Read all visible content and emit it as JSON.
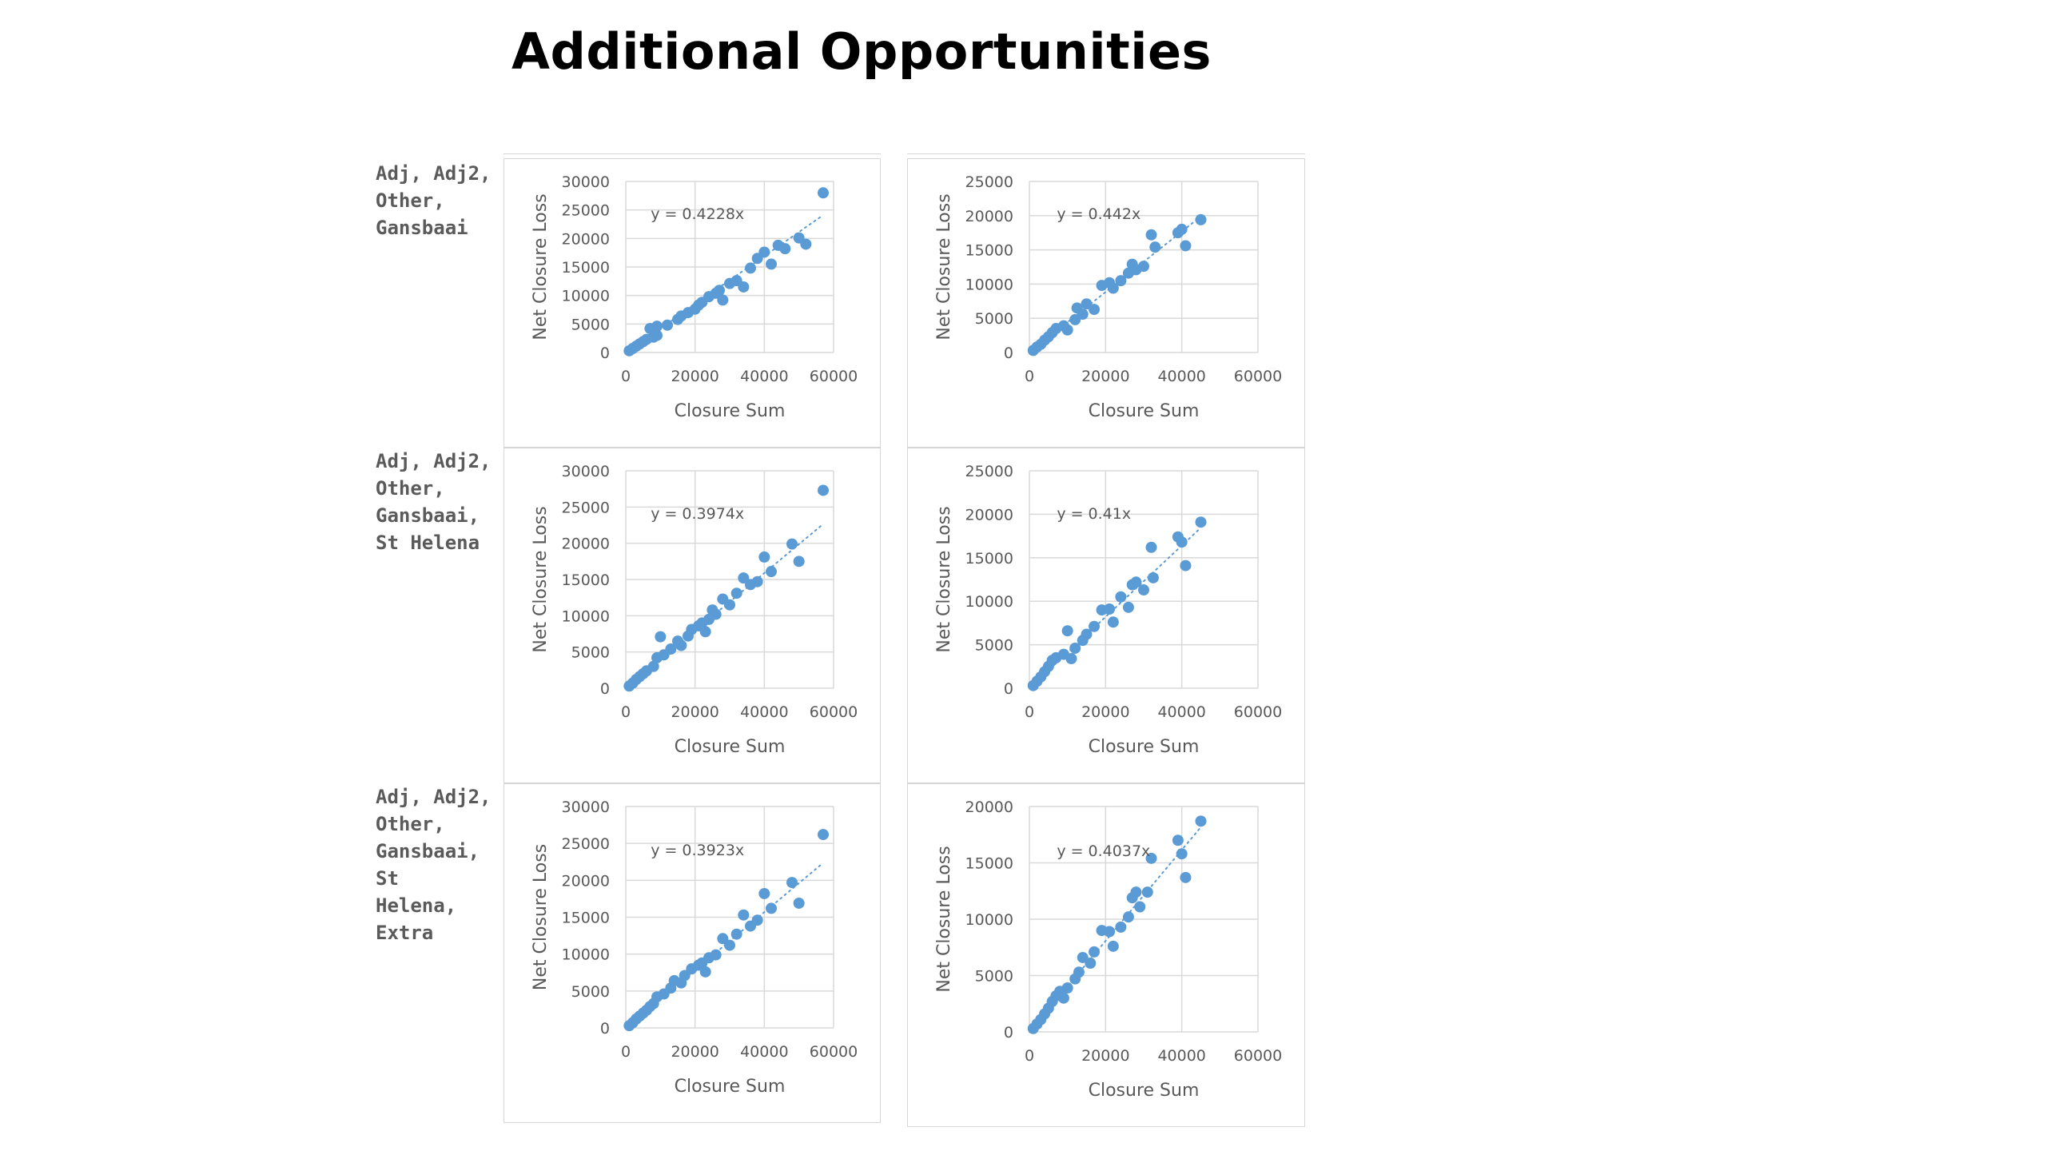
{
  "title": "Additional Opportunities",
  "row_labels": [
    [
      "Adj, Adj2,",
      "Other,",
      "Gansbaai"
    ],
    [
      "Adj, Adj2,",
      "Other,",
      "Gansbaai,",
      "St Helena"
    ],
    [
      "Adj, Adj2,",
      "Other,",
      "Gansbaai,",
      "St",
      "Helena,",
      "Extra"
    ]
  ],
  "colors": {
    "marker": "#5b9bd5",
    "trendline": "#5b9bd5",
    "grid": "#d9d9d9",
    "text": "#595959"
  },
  "chart_data": [
    {
      "type": "scatter",
      "xlabel": "Closure Sum",
      "ylabel": "Net Closure Loss",
      "xlim": [
        0,
        60000
      ],
      "ylim": [
        0,
        30000
      ],
      "xticks": [
        0,
        20000,
        40000,
        60000
      ],
      "yticks": [
        0,
        5000,
        10000,
        15000,
        20000,
        25000,
        30000
      ],
      "trendline": {
        "slope": 0.4228,
        "label": "y = 0.4228x"
      },
      "points": [
        [
          1000,
          300
        ],
        [
          2000,
          700
        ],
        [
          3000,
          1100
        ],
        [
          4000,
          1500
        ],
        [
          5000,
          1900
        ],
        [
          6000,
          2300
        ],
        [
          8000,
          2700
        ],
        [
          9000,
          3000
        ],
        [
          7000,
          4200
        ],
        [
          9000,
          4600
        ],
        [
          12000,
          4800
        ],
        [
          15000,
          5800
        ],
        [
          16000,
          6400
        ],
        [
          18000,
          7000
        ],
        [
          20000,
          7600
        ],
        [
          21000,
          8300
        ],
        [
          22000,
          8800
        ],
        [
          24000,
          9800
        ],
        [
          26000,
          10400
        ],
        [
          27000,
          10900
        ],
        [
          28000,
          9200
        ],
        [
          30000,
          12100
        ],
        [
          32000,
          12600
        ],
        [
          34000,
          11500
        ],
        [
          36000,
          14800
        ],
        [
          38000,
          16500
        ],
        [
          40000,
          17600
        ],
        [
          42000,
          15500
        ],
        [
          44000,
          18800
        ],
        [
          46000,
          18200
        ],
        [
          50000,
          20100
        ],
        [
          52000,
          19000
        ],
        [
          57000,
          28000
        ]
      ]
    },
    {
      "type": "scatter",
      "xlabel": "Closure Sum",
      "ylabel": "Net Closure Loss",
      "xlim": [
        0,
        60000
      ],
      "ylim": [
        0,
        25000
      ],
      "xticks": [
        0,
        20000,
        40000,
        60000
      ],
      "yticks": [
        0,
        5000,
        10000,
        15000,
        20000,
        25000
      ],
      "trendline": {
        "slope": 0.442,
        "label": "y = 0.442x"
      },
      "points": [
        [
          1000,
          300
        ],
        [
          2000,
          800
        ],
        [
          3000,
          1200
        ],
        [
          4000,
          1800
        ],
        [
          5000,
          2300
        ],
        [
          6000,
          2900
        ],
        [
          7000,
          3500
        ],
        [
          9000,
          3900
        ],
        [
          10000,
          3300
        ],
        [
          12000,
          4800
        ],
        [
          12500,
          6500
        ],
        [
          14000,
          5600
        ],
        [
          15000,
          7100
        ],
        [
          17000,
          6300
        ],
        [
          19000,
          9800
        ],
        [
          21000,
          10200
        ],
        [
          22000,
          9400
        ],
        [
          24000,
          10500
        ],
        [
          26000,
          11600
        ],
        [
          27000,
          12900
        ],
        [
          28000,
          12100
        ],
        [
          30000,
          12600
        ],
        [
          32000,
          17200
        ],
        [
          33000,
          15400
        ],
        [
          39000,
          17500
        ],
        [
          40000,
          18000
        ],
        [
          41000,
          15600
        ],
        [
          45000,
          19400
        ]
      ]
    },
    {
      "type": "scatter",
      "xlabel": "Closure Sum",
      "ylabel": "Net Closure Loss",
      "xlim": [
        0,
        60000
      ],
      "ylim": [
        0,
        30000
      ],
      "xticks": [
        0,
        20000,
        40000,
        60000
      ],
      "yticks": [
        0,
        5000,
        10000,
        15000,
        20000,
        25000,
        30000
      ],
      "trendline": {
        "slope": 0.3974,
        "label": "y = 0.3974x"
      },
      "points": [
        [
          1000,
          300
        ],
        [
          2000,
          700
        ],
        [
          3000,
          1200
        ],
        [
          4000,
          1600
        ],
        [
          5000,
          2000
        ],
        [
          6000,
          2400
        ],
        [
          8000,
          3000
        ],
        [
          9000,
          4200
        ],
        [
          10000,
          7100
        ],
        [
          11000,
          4600
        ],
        [
          13000,
          5400
        ],
        [
          15000,
          6500
        ],
        [
          16000,
          5900
        ],
        [
          18000,
          7200
        ],
        [
          19000,
          8100
        ],
        [
          21000,
          8600
        ],
        [
          22000,
          9000
        ],
        [
          23000,
          7800
        ],
        [
          24000,
          9500
        ],
        [
          25000,
          10800
        ],
        [
          26000,
          10200
        ],
        [
          28000,
          12300
        ],
        [
          30000,
          11500
        ],
        [
          32000,
          13100
        ],
        [
          34000,
          15200
        ],
        [
          36000,
          14300
        ],
        [
          38000,
          14700
        ],
        [
          40000,
          18100
        ],
        [
          42000,
          16100
        ],
        [
          48000,
          19900
        ],
        [
          50000,
          17500
        ],
        [
          57000,
          27300
        ]
      ]
    },
    {
      "type": "scatter",
      "xlabel": "Closure Sum",
      "ylabel": "Net Closure Loss",
      "xlim": [
        0,
        60000
      ],
      "ylim": [
        0,
        25000
      ],
      "xticks": [
        0,
        20000,
        40000,
        60000
      ],
      "yticks": [
        0,
        5000,
        10000,
        15000,
        20000,
        25000
      ],
      "trendline": {
        "slope": 0.41,
        "label": "y = 0.41x"
      },
      "points": [
        [
          1000,
          300
        ],
        [
          2000,
          800
        ],
        [
          3000,
          1300
        ],
        [
          4000,
          1900
        ],
        [
          5000,
          2500
        ],
        [
          6000,
          3200
        ],
        [
          7000,
          3500
        ],
        [
          9000,
          3900
        ],
        [
          10000,
          6600
        ],
        [
          11000,
          3400
        ],
        [
          12000,
          4600
        ],
        [
          14000,
          5500
        ],
        [
          15000,
          6200
        ],
        [
          17000,
          7100
        ],
        [
          19000,
          9000
        ],
        [
          21000,
          9100
        ],
        [
          22000,
          7600
        ],
        [
          24000,
          10500
        ],
        [
          26000,
          9300
        ],
        [
          27000,
          11900
        ],
        [
          28000,
          12200
        ],
        [
          30000,
          11300
        ],
        [
          32000,
          16200
        ],
        [
          32500,
          12700
        ],
        [
          39000,
          17400
        ],
        [
          40000,
          16800
        ],
        [
          41000,
          14100
        ],
        [
          45000,
          19100
        ]
      ]
    },
    {
      "type": "scatter",
      "xlabel": "Closure Sum",
      "ylabel": "Net Closure Loss",
      "xlim": [
        0,
        60000
      ],
      "ylim": [
        0,
        30000
      ],
      "xticks": [
        0,
        20000,
        40000,
        60000
      ],
      "yticks": [
        0,
        5000,
        10000,
        15000,
        20000,
        25000,
        30000
      ],
      "trendline": {
        "slope": 0.3923,
        "label": "y = 0.3923x"
      },
      "points": [
        [
          1000,
          300
        ],
        [
          2000,
          700
        ],
        [
          3000,
          1200
        ],
        [
          4000,
          1600
        ],
        [
          5000,
          2000
        ],
        [
          6000,
          2400
        ],
        [
          7000,
          2900
        ],
        [
          8000,
          3300
        ],
        [
          9000,
          4200
        ],
        [
          11000,
          4600
        ],
        [
          13000,
          5400
        ],
        [
          14000,
          6400
        ],
        [
          16000,
          6100
        ],
        [
          17000,
          7100
        ],
        [
          19000,
          8000
        ],
        [
          21000,
          8500
        ],
        [
          22000,
          8800
        ],
        [
          23000,
          7600
        ],
        [
          24000,
          9500
        ],
        [
          26000,
          9900
        ],
        [
          28000,
          12100
        ],
        [
          30000,
          11200
        ],
        [
          32000,
          12700
        ],
        [
          34000,
          15300
        ],
        [
          36000,
          13800
        ],
        [
          38000,
          14600
        ],
        [
          40000,
          18200
        ],
        [
          42000,
          16200
        ],
        [
          48000,
          19700
        ],
        [
          50000,
          16900
        ],
        [
          57000,
          26200
        ]
      ]
    },
    {
      "type": "scatter",
      "xlabel": "Closure Sum",
      "ylabel": "Net Closure Loss",
      "xlim": [
        0,
        60000
      ],
      "ylim": [
        0,
        20000
      ],
      "xticks": [
        0,
        20000,
        40000,
        60000
      ],
      "yticks": [
        0,
        5000,
        10000,
        15000,
        20000
      ],
      "trendline": {
        "slope": 0.4037,
        "label": "y = 0.4037x"
      },
      "points": [
        [
          1000,
          300
        ],
        [
          2000,
          700
        ],
        [
          3000,
          1100
        ],
        [
          4000,
          1600
        ],
        [
          5000,
          2100
        ],
        [
          6000,
          2700
        ],
        [
          7000,
          3200
        ],
        [
          8000,
          3600
        ],
        [
          9000,
          3000
        ],
        [
          10000,
          3900
        ],
        [
          12000,
          4700
        ],
        [
          13000,
          5300
        ],
        [
          14000,
          6600
        ],
        [
          16000,
          6100
        ],
        [
          17000,
          7100
        ],
        [
          19000,
          9000
        ],
        [
          21000,
          8900
        ],
        [
          22000,
          7600
        ],
        [
          24000,
          9300
        ],
        [
          26000,
          10200
        ],
        [
          27000,
          11900
        ],
        [
          28000,
          12400
        ],
        [
          29000,
          11100
        ],
        [
          31000,
          12400
        ],
        [
          32000,
          15400
        ],
        [
          39000,
          17000
        ],
        [
          40000,
          15800
        ],
        [
          41000,
          13700
        ],
        [
          45000,
          18700
        ]
      ]
    }
  ]
}
